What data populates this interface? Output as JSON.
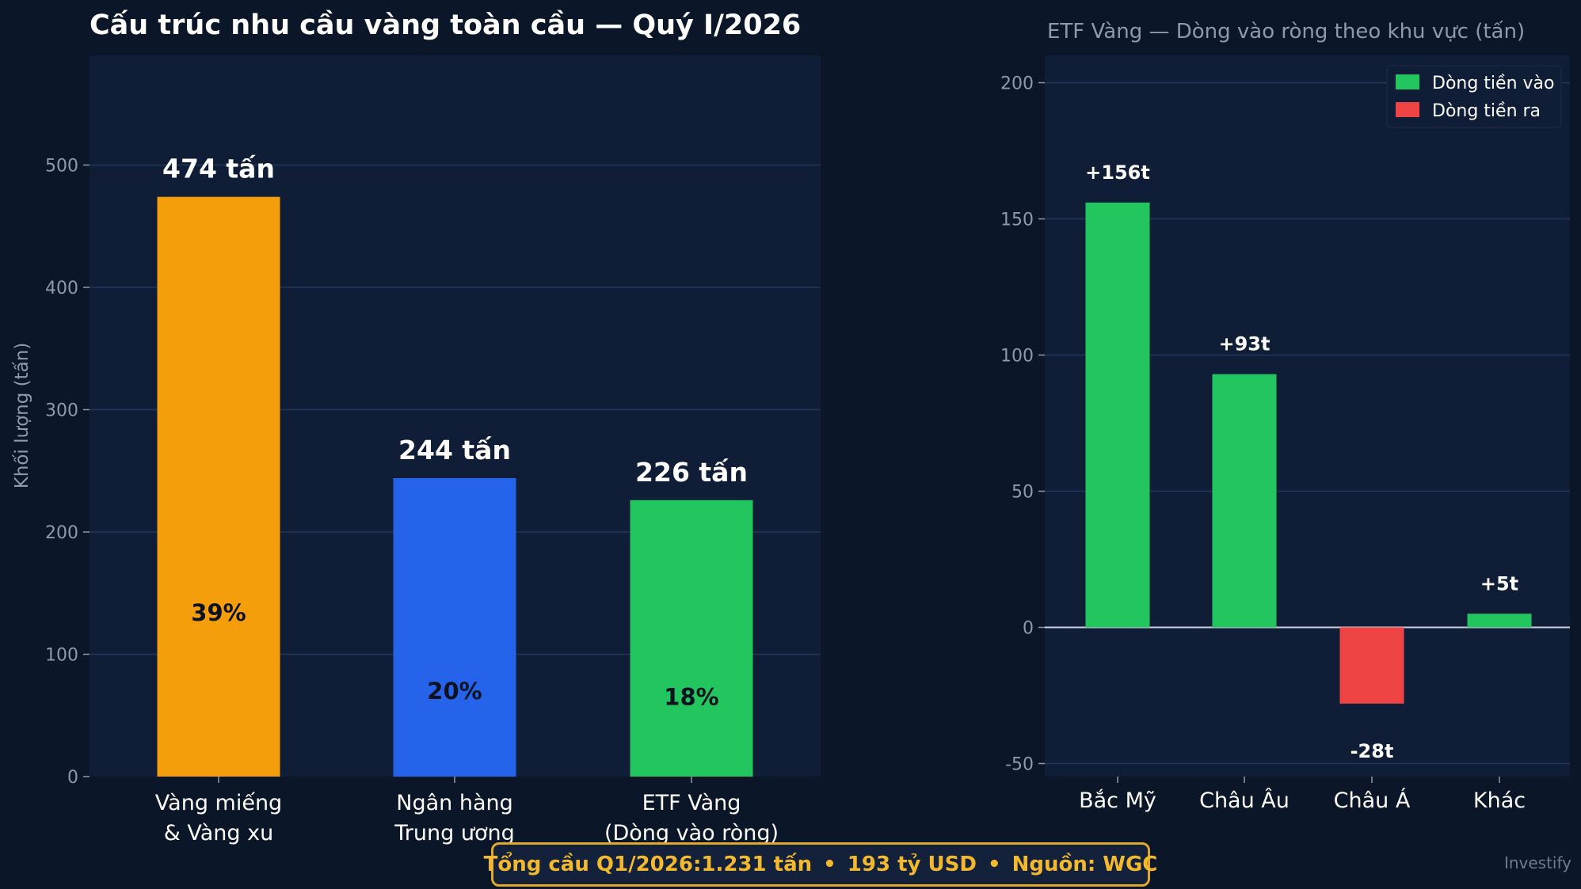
{
  "chart_data": [
    {
      "type": "bar",
      "title": "Cấu trúc nhu cầu vàng toàn cầu — Quý I/2026",
      "ylabel": "Khối lượng (tấn)",
      "ylim": [
        0,
        590
      ],
      "yticks": [
        0,
        100,
        200,
        300,
        400,
        500
      ],
      "grid": true,
      "categories": [
        [
          "Vàng miếng",
          "& Vàng xu"
        ],
        [
          "Ngân hàng",
          "Trung ương"
        ],
        [
          "ETF Vàng",
          "(Dòng vào ròng)"
        ]
      ],
      "values": [
        474,
        244,
        226
      ],
      "value_labels": [
        "474 tấn",
        "244 tấn",
        "226 tấn"
      ],
      "share_labels": [
        "39%",
        "20%",
        "18%"
      ],
      "share_positions": [
        134,
        70,
        65
      ],
      "colors": [
        "#f59e0b",
        "#2563eb",
        "#22c55e"
      ]
    },
    {
      "type": "bar",
      "title": "ETF Vàng — Dòng vào ròng theo khu vực (tấn)",
      "ylim": [
        -55,
        210
      ],
      "yticks": [
        -50,
        0,
        50,
        100,
        150,
        200
      ],
      "grid": true,
      "legend_position": "top-right",
      "categories": [
        "Bắc Mỹ",
        "Châu Âu",
        "Châu Á",
        "Khác"
      ],
      "values": [
        156,
        93,
        -28,
        5
      ],
      "value_labels": [
        "+156t",
        "+93t",
        "-28t",
        "+5t"
      ],
      "legend": [
        {
          "label": "Dòng tiền vào",
          "color": "#22c55e"
        },
        {
          "label": "Dòng tiền ra",
          "color": "#ef4444"
        }
      ],
      "positive_color": "#22c55e",
      "negative_color": "#ef4444"
    }
  ],
  "footer": {
    "total_label": "Tổng cầu Q1/2026:",
    "total_value": "1.231 tấn",
    "value_usd": "193 tỷ USD",
    "source": "Nguồn: WGC",
    "separator": "•"
  },
  "brand": "Investify"
}
